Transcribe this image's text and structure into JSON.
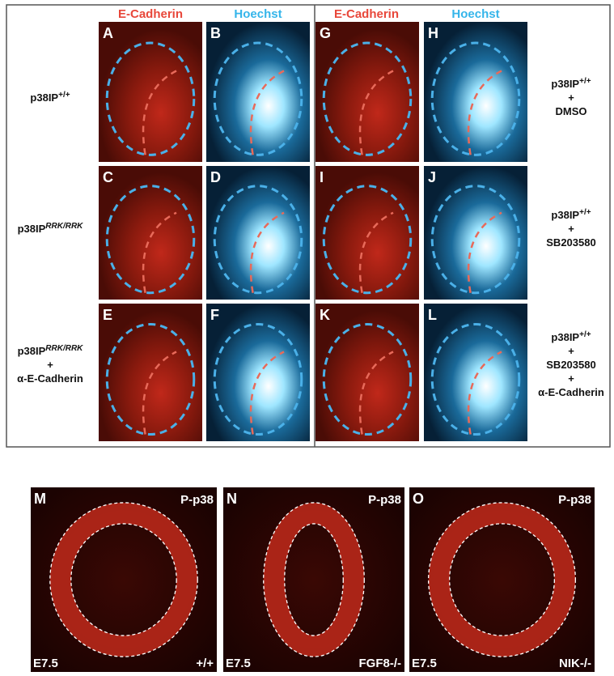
{
  "column_headers": [
    "E-Cadherin",
    "Hoechst",
    "E-Cadherin",
    "Hoechst"
  ],
  "left_labels": [
    {
      "base": "p38IP",
      "sup": "+/+"
    },
    {
      "base": "p38IP",
      "sup": "RRK/RRK"
    },
    {
      "base": "p38IP",
      "sup": "RRK/RRK",
      "lines": [
        "+",
        "α-E-Cadherin"
      ]
    }
  ],
  "right_labels": [
    {
      "base": "p38IP",
      "sup": "+/+",
      "lines": [
        "+",
        "DMSO"
      ]
    },
    {
      "base": "p38IP",
      "sup": "+/+",
      "lines": [
        "+",
        "SB203580"
      ]
    },
    {
      "base": "p38IP",
      "sup": "+/+",
      "lines": [
        "+",
        "SB203580",
        "+",
        "α-E-Cadherin"
      ]
    }
  ],
  "panel_letters": [
    "A",
    "B",
    "C",
    "D",
    "E",
    "F",
    "G",
    "H",
    "I",
    "J",
    "K",
    "L"
  ],
  "bottom_panels": [
    {
      "letter": "M",
      "stain": "P-p38",
      "stage": "E7.5",
      "genotype": "+/+"
    },
    {
      "letter": "N",
      "stain": "P-p38",
      "stage": "E7.5",
      "genotype": "FGF8-/-"
    },
    {
      "letter": "O",
      "stain": "P-p38",
      "stage": "E7.5",
      "genotype": "NIK-/-"
    }
  ]
}
